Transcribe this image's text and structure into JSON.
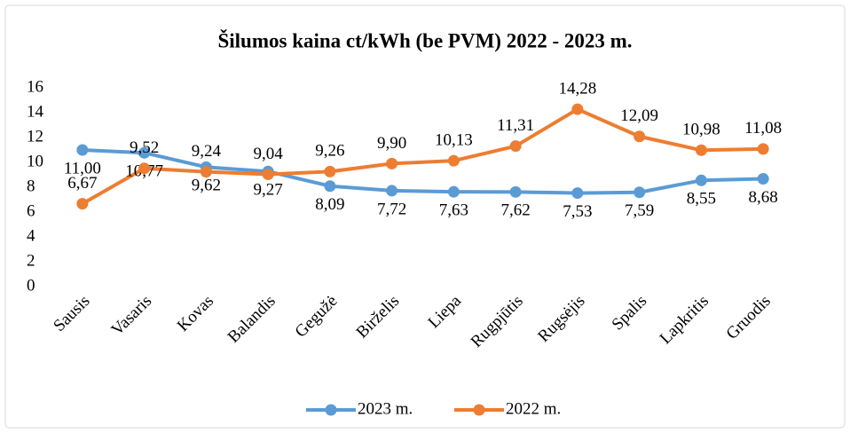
{
  "chart_data": {
    "type": "line",
    "title": "Šilumos kaina ct/kWh (be PVM) 2022 - 2023 m.",
    "categories": [
      "Sausis",
      "Vasaris",
      "Kovas",
      "Balandis",
      "Gegužė",
      "Birželis",
      "Liepa",
      "Rugpjūtis",
      "Rugsėjis",
      "Spalis",
      "Lapkritis",
      "Gruodis"
    ],
    "series": [
      {
        "name": "2023 m.",
        "color": "#5b9bd5",
        "values": [
          11.0,
          10.77,
          9.62,
          9.27,
          8.09,
          7.72,
          7.63,
          7.62,
          7.53,
          7.59,
          8.55,
          8.68
        ],
        "value_labels": [
          "11,00",
          "10,77",
          "9,62",
          "9,27",
          "8,09",
          "7,72",
          "7,63",
          "7,62",
          "7,53",
          "7,59",
          "8,55",
          "8,68"
        ]
      },
      {
        "name": "2022 m.",
        "color": "#ed7d31",
        "values": [
          6.67,
          9.52,
          9.24,
          9.04,
          9.26,
          9.9,
          10.13,
          11.31,
          14.28,
          12.09,
          10.98,
          11.08
        ],
        "value_labels": [
          "6,67",
          "9,52",
          "9,24",
          "9,04",
          "9,26",
          "9,90",
          "10,13",
          "11,31",
          "14,28",
          "12,09",
          "10,98",
          "11,08"
        ]
      }
    ],
    "ylim": [
      0,
      16
    ],
    "yticks": [
      0,
      2,
      4,
      6,
      8,
      10,
      12,
      14,
      16
    ],
    "grid": false,
    "legend": "bottom"
  }
}
